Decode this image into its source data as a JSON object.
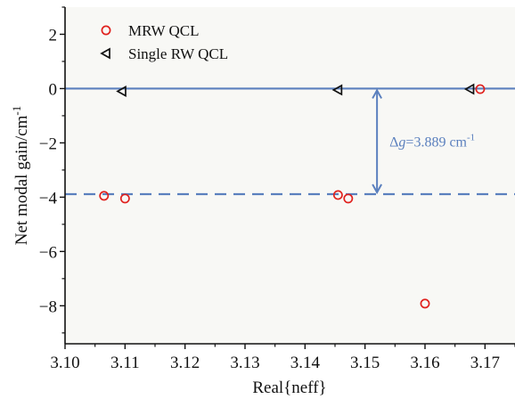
{
  "chart_data": {
    "type": "scatter",
    "title": "",
    "xlabel": "Real{neff}",
    "ylabel": "Net modal gain/cm",
    "ylabel_sup": "-1",
    "xlim": [
      3.1,
      3.175
    ],
    "ylim": [
      -9.4,
      3.0
    ],
    "x_ticks": [
      "3.10",
      "3.11",
      "3.12",
      "3.13",
      "3.14",
      "3.15",
      "3.16",
      "3.17"
    ],
    "y_ticks": [
      "2",
      "0",
      "−2",
      "−4",
      "−6",
      "−8"
    ],
    "legend_position": "top-left",
    "series": [
      {
        "name": "MRW QCL",
        "marker": "circle",
        "color": "#e0211d",
        "x": [
          3.1065,
          3.11,
          3.1455,
          3.1472,
          3.16,
          3.1692
        ],
        "y": [
          -3.95,
          -4.05,
          -3.92,
          -4.05,
          -7.92,
          -0.02
        ]
      },
      {
        "name": "Single RW QCL",
        "marker": "triangle-left",
        "color": "#111111",
        "x": [
          3.1095,
          3.1455,
          3.1675
        ],
        "y": [
          -0.1,
          -0.05,
          -0.02
        ]
      }
    ],
    "reference_lines": [
      {
        "style": "solid",
        "y": 0,
        "color": "#5b80be"
      },
      {
        "style": "dashed",
        "y": -3.889,
        "color": "#5b80be"
      }
    ],
    "annotation": {
      "delta_symbol": "Δ",
      "g_symbol": "g",
      "value_text": "=3.889 cm",
      "unit_sup": "-1",
      "arrow_x": 3.152,
      "arrow_y_top": 0,
      "arrow_y_bottom": -3.889,
      "color": "#5b80be"
    },
    "background_color": "#f8f8f5"
  }
}
